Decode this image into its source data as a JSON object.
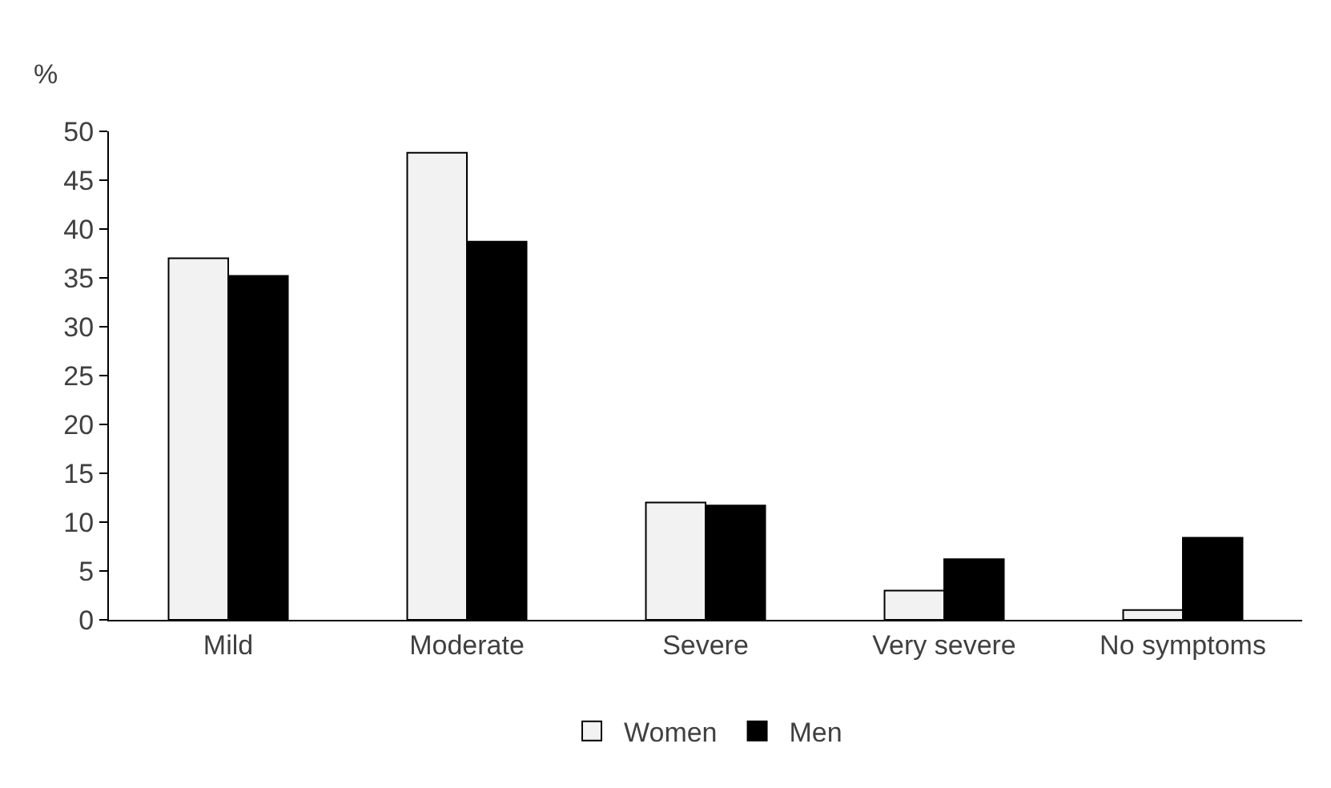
{
  "chart_data": {
    "type": "bar",
    "ylabel": "%",
    "categories": [
      "Mild",
      "Moderate",
      "Severe",
      "Very severe",
      "No symptoms"
    ],
    "series": [
      {
        "name": "Women",
        "color": "#f2f2f2",
        "values": [
          37,
          47.8,
          12,
          3,
          1
        ]
      },
      {
        "name": "Men",
        "color": "#000000",
        "values": [
          35.2,
          38.7,
          11.7,
          6.2,
          8.4
        ]
      }
    ],
    "ylim": [
      0,
      50
    ],
    "yticks": [
      0,
      5,
      10,
      15,
      20,
      25,
      30,
      35,
      40,
      45,
      50
    ],
    "grid": false,
    "legend": "bottom"
  }
}
